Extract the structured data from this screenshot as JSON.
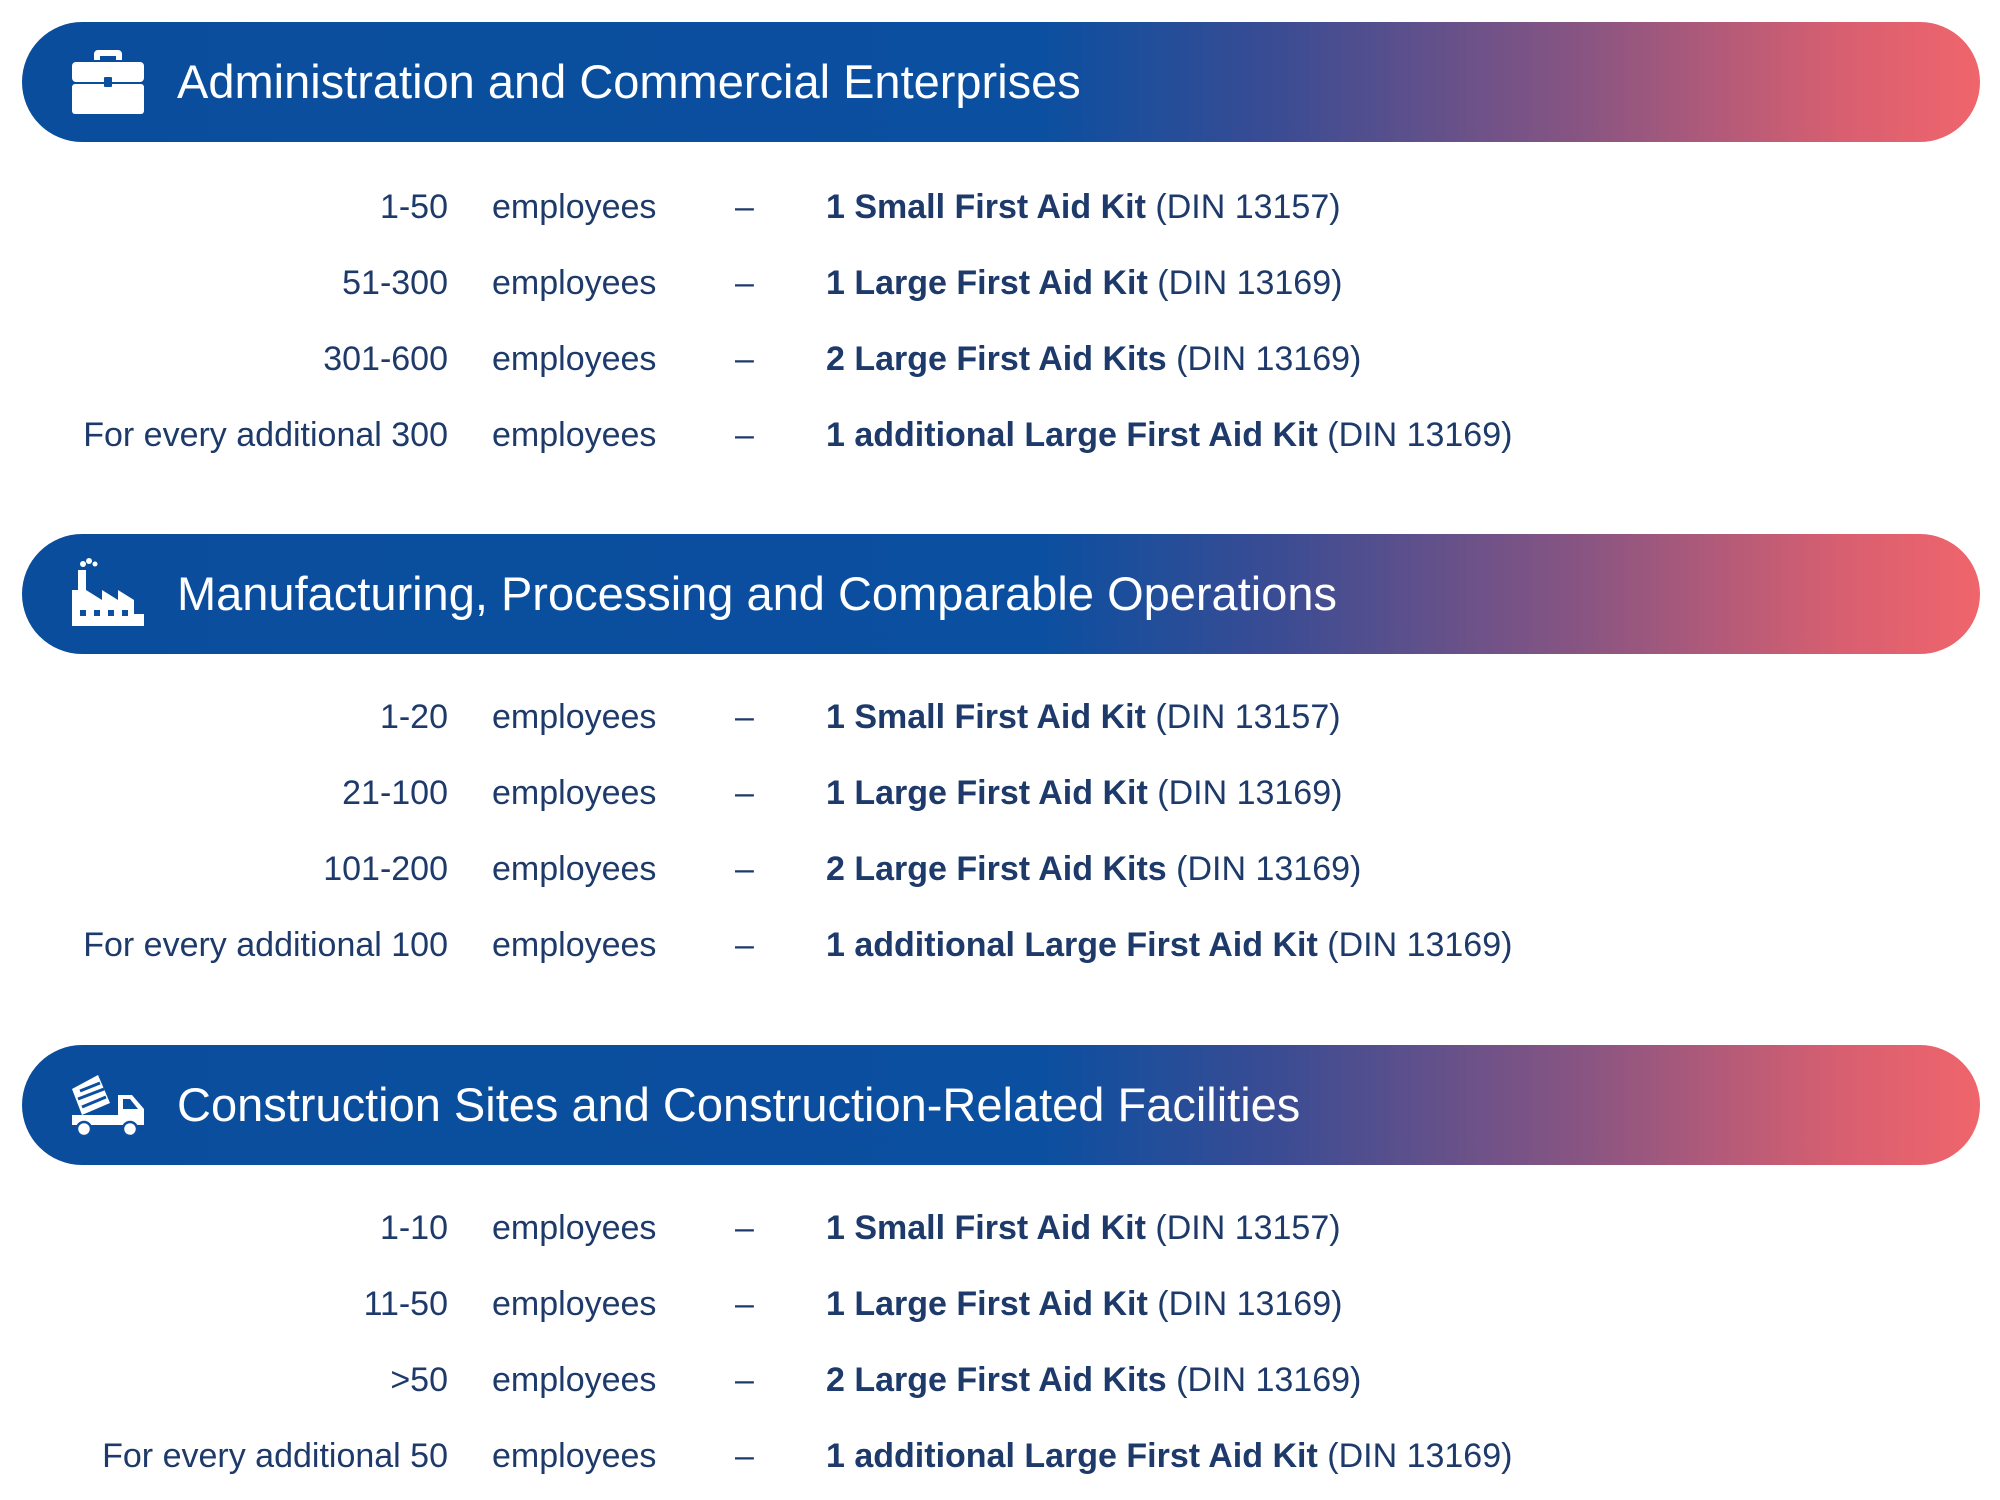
{
  "sections": [
    {
      "icon": "briefcase-icon",
      "title": "Administration and Commercial Enterprises",
      "rows": [
        {
          "count": "1-50",
          "unit": "employees",
          "dash": "–",
          "kit_bold": "1 Small First Aid Kit",
          "kit_ref": "(DIN 13157)"
        },
        {
          "count": "51-300",
          "unit": "employees",
          "dash": "–",
          "kit_bold": "1 Large First Aid Kit",
          "kit_ref": "(DIN 13169)"
        },
        {
          "count": "301-600",
          "unit": "employees",
          "dash": "–",
          "kit_bold": "2 Large First Aid Kits",
          "kit_ref": "(DIN 13169)"
        },
        {
          "count": "For every additional 300",
          "unit": "employees",
          "dash": "–",
          "kit_bold": "1 additional Large First Aid Kit",
          "kit_ref": "(DIN 13169)"
        }
      ]
    },
    {
      "icon": "factory-icon",
      "title": "Manufacturing, Processing and Comparable Operations",
      "rows": [
        {
          "count": "1-20",
          "unit": "employees",
          "dash": "–",
          "kit_bold": "1 Small First Aid Kit",
          "kit_ref": "(DIN 13157)"
        },
        {
          "count": "21-100",
          "unit": "employees",
          "dash": "–",
          "kit_bold": "1 Large First Aid Kit",
          "kit_ref": "(DIN 13169)"
        },
        {
          "count": "101-200",
          "unit": "employees",
          "dash": "–",
          "kit_bold": "2 Large First Aid Kits",
          "kit_ref": "(DIN 13169)"
        },
        {
          "count": "For every additional 100",
          "unit": "employees",
          "dash": "–",
          "kit_bold": "1 additional Large First Aid Kit",
          "kit_ref": "(DIN 13169)"
        }
      ]
    },
    {
      "icon": "cement-mixer-truck-icon",
      "title": "Construction Sites and Construction-Related Facilities",
      "rows": [
        {
          "count": "1-10",
          "unit": "employees",
          "dash": "–",
          "kit_bold": "1 Small First Aid Kit",
          "kit_ref": "(DIN 13157)"
        },
        {
          "count": "11-50",
          "unit": "employees",
          "dash": "–",
          "kit_bold": "1 Large First Aid Kit",
          "kit_ref": "(DIN 13169)"
        },
        {
          "count": ">50",
          "unit": "employees",
          "dash": "–",
          "kit_bold": "2 Large First Aid Kits",
          "kit_ref": "(DIN 13169)"
        },
        {
          "count": "For every additional 50",
          "unit": "employees",
          "dash": "–",
          "kit_bold": "1 additional Large First Aid Kit",
          "kit_ref": "(DIN 13169)"
        }
      ]
    }
  ],
  "colors": {
    "text": "#1d3a6b",
    "banner_start": "#0b4fa0",
    "banner_end": "#f0656c",
    "banner_text": "#ffffff"
  }
}
